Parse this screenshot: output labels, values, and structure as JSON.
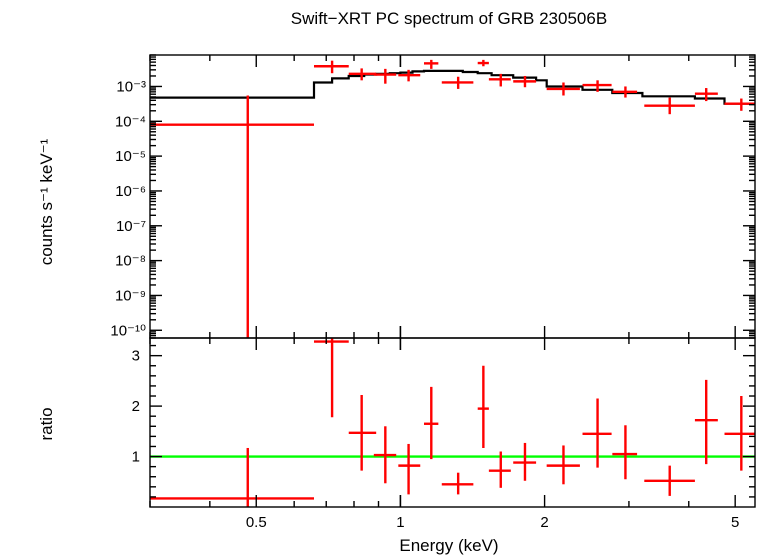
{
  "chart_data": [
    {
      "type": "step",
      "title": "Swift−XRT PC spectrum of GRB 230506B",
      "ylabel": "counts s⁻¹ keV⁻¹",
      "xlabel": "Energy (keV)",
      "x_scale": "log",
      "y_scale": "log",
      "xlim": [
        0.3,
        5.5
      ],
      "ylim": [
        6e-11,
        0.008
      ],
      "y_ticks": [
        {
          "value": 0.001,
          "label": "10⁻³"
        },
        {
          "value": 0.0001,
          "label": "10⁻⁴"
        },
        {
          "value": 1e-05,
          "label": "10⁻⁵"
        },
        {
          "value": 1e-06,
          "label": "10⁻⁶"
        },
        {
          "value": 1e-07,
          "label": "10⁻⁷"
        },
        {
          "value": 1e-08,
          "label": "10⁻⁸"
        },
        {
          "value": 1e-09,
          "label": "10⁻⁹"
        },
        {
          "value": 1e-10,
          "label": "10⁻¹⁰"
        }
      ],
      "series": [
        {
          "type": "errorbar",
          "color": "#ff0000",
          "points": [
            {
              "x": 0.48,
              "xlo": 0.3,
              "xhi": 0.66,
              "y": 8e-05,
              "ylo": 6e-11,
              "yhi": 0.00055
            },
            {
              "x": 0.72,
              "xlo": 0.66,
              "xhi": 0.78,
              "y": 0.0038,
              "ylo": 0.0024,
              "yhi": 0.0055
            },
            {
              "x": 0.83,
              "xlo": 0.78,
              "xhi": 0.89,
              "y": 0.0023,
              "ylo": 0.0015,
              "yhi": 0.0033
            },
            {
              "x": 0.93,
              "xlo": 0.88,
              "xhi": 0.98,
              "y": 0.0022,
              "ylo": 0.0012,
              "yhi": 0.0032
            },
            {
              "x": 1.04,
              "xlo": 0.99,
              "xhi": 1.1,
              "y": 0.0021,
              "ylo": 0.0014,
              "yhi": 0.003
            },
            {
              "x": 1.16,
              "xlo": 1.12,
              "xhi": 1.2,
              "y": 0.0046,
              "ylo": 0.0032,
              "yhi": 0.0058
            },
            {
              "x": 1.32,
              "xlo": 1.22,
              "xhi": 1.42,
              "y": 0.0013,
              "ylo": 0.00085,
              "yhi": 0.0019
            },
            {
              "x": 1.49,
              "xlo": 1.45,
              "xhi": 1.53,
              "y": 0.0047,
              "ylo": 0.0038,
              "yhi": 0.0058
            },
            {
              "x": 1.62,
              "xlo": 1.53,
              "xhi": 1.7,
              "y": 0.0016,
              "ylo": 0.001,
              "yhi": 0.0023
            },
            {
              "x": 1.82,
              "xlo": 1.72,
              "xhi": 1.92,
              "y": 0.0014,
              "ylo": 0.00095,
              "yhi": 0.002
            },
            {
              "x": 2.19,
              "xlo": 2.02,
              "xhi": 2.37,
              "y": 0.00085,
              "ylo": 0.00055,
              "yhi": 0.0013
            },
            {
              "x": 2.58,
              "xlo": 2.4,
              "xhi": 2.76,
              "y": 0.0011,
              "ylo": 0.0007,
              "yhi": 0.0015
            },
            {
              "x": 2.95,
              "xlo": 2.77,
              "xhi": 3.12,
              "y": 0.0007,
              "ylo": 0.00048,
              "yhi": 0.001
            },
            {
              "x": 3.65,
              "xlo": 3.23,
              "xhi": 4.12,
              "y": 0.00028,
              "ylo": 0.00016,
              "yhi": 0.00048
            },
            {
              "x": 4.35,
              "xlo": 4.12,
              "xhi": 4.6,
              "y": 0.00062,
              "ylo": 0.00038,
              "yhi": 0.0009
            },
            {
              "x": 5.15,
              "xlo": 4.75,
              "xhi": 5.5,
              "y": 0.00032,
              "ylo": 0.0002,
              "yhi": 0.00045
            }
          ]
        },
        {
          "type": "model-step",
          "color": "#000000",
          "edges": [
            0.3,
            0.66,
            0.72,
            0.78,
            0.84,
            0.89,
            0.95,
            1.0,
            1.06,
            1.12,
            1.2,
            1.35,
            1.45,
            1.55,
            1.72,
            1.92,
            2.02,
            2.4,
            2.77,
            3.2,
            4.12,
            4.75,
            5.5
          ],
          "values": [
            0.00048,
            0.0013,
            0.0017,
            0.002,
            0.0022,
            0.0023,
            0.0024,
            0.0025,
            0.0027,
            0.0028,
            0.0028,
            0.0026,
            0.0024,
            0.0021,
            0.0018,
            0.0015,
            0.001,
            0.0008,
            0.00065,
            0.00052,
            0.00045,
            0.00032
          ]
        }
      ]
    },
    {
      "type": "errorbar",
      "ylabel": "ratio",
      "xlabel": "Energy (keV)",
      "x_scale": "log",
      "xlim": [
        0.3,
        5.5
      ],
      "ylim": [
        0,
        3.35
      ],
      "y_ticks": [
        {
          "value": 1,
          "label": "1"
        },
        {
          "value": 2,
          "label": "2"
        },
        {
          "value": 3,
          "label": "3"
        }
      ],
      "x_ticks": [
        {
          "value": 0.5,
          "label": "0.5"
        },
        {
          "value": 1,
          "label": "1"
        },
        {
          "value": 2,
          "label": "2"
        },
        {
          "value": 5,
          "label": "5"
        }
      ],
      "reference_line": {
        "y": 1,
        "color": "#00ff00"
      },
      "series": [
        {
          "color": "#ff0000",
          "points": [
            {
              "x": 0.48,
              "xlo": 0.3,
              "xhi": 0.66,
              "y": 0.17,
              "ylo": 0.0,
              "yhi": 1.17
            },
            {
              "x": 0.72,
              "xlo": 0.66,
              "xhi": 0.78,
              "y": 3.28,
              "ylo": 1.78,
              "yhi": 3.35
            },
            {
              "x": 0.83,
              "xlo": 0.78,
              "xhi": 0.89,
              "y": 1.47,
              "ylo": 0.72,
              "yhi": 2.22
            },
            {
              "x": 0.93,
              "xlo": 0.88,
              "xhi": 0.98,
              "y": 1.03,
              "ylo": 0.47,
              "yhi": 1.6
            },
            {
              "x": 1.04,
              "xlo": 0.99,
              "xhi": 1.1,
              "y": 0.82,
              "ylo": 0.25,
              "yhi": 1.25
            },
            {
              "x": 1.16,
              "xlo": 1.12,
              "xhi": 1.2,
              "y": 1.65,
              "ylo": 0.95,
              "yhi": 2.38
            },
            {
              "x": 1.32,
              "xlo": 1.22,
              "xhi": 1.42,
              "y": 0.45,
              "ylo": 0.25,
              "yhi": 0.68
            },
            {
              "x": 1.49,
              "xlo": 1.45,
              "xhi": 1.53,
              "y": 1.95,
              "ylo": 1.17,
              "yhi": 2.8
            },
            {
              "x": 1.62,
              "xlo": 1.53,
              "xhi": 1.7,
              "y": 0.72,
              "ylo": 0.38,
              "yhi": 1.1
            },
            {
              "x": 1.82,
              "xlo": 1.72,
              "xhi": 1.92,
              "y": 0.88,
              "ylo": 0.52,
              "yhi": 1.27
            },
            {
              "x": 2.19,
              "xlo": 2.02,
              "xhi": 2.37,
              "y": 0.82,
              "ylo": 0.45,
              "yhi": 1.22
            },
            {
              "x": 2.58,
              "xlo": 2.4,
              "xhi": 2.76,
              "y": 1.45,
              "ylo": 0.78,
              "yhi": 2.15
            },
            {
              "x": 2.95,
              "xlo": 2.77,
              "xhi": 3.12,
              "y": 1.05,
              "ylo": 0.55,
              "yhi": 1.62
            },
            {
              "x": 3.65,
              "xlo": 3.23,
              "xhi": 4.12,
              "y": 0.52,
              "ylo": 0.22,
              "yhi": 0.82
            },
            {
              "x": 4.35,
              "xlo": 4.12,
              "xhi": 4.6,
              "y": 1.72,
              "ylo": 0.85,
              "yhi": 2.52
            },
            {
              "x": 5.15,
              "xlo": 4.75,
              "xhi": 5.5,
              "y": 1.45,
              "ylo": 0.72,
              "yhi": 2.2
            }
          ]
        }
      ]
    }
  ]
}
